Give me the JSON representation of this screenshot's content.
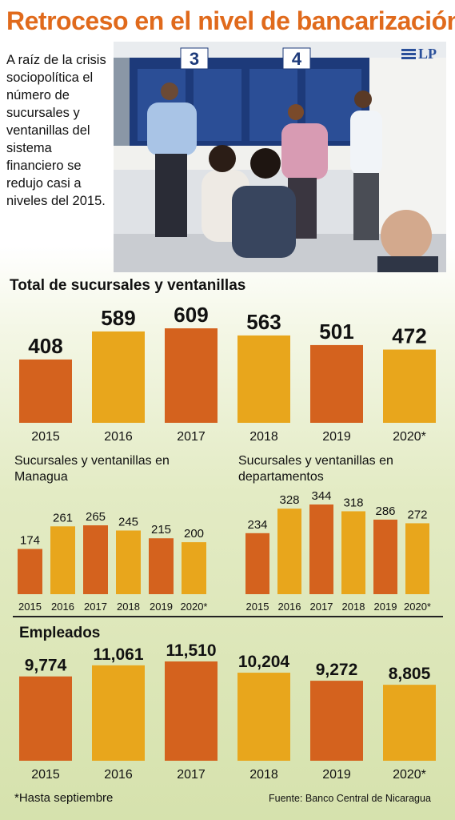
{
  "header": {
    "title": "Retroceso en el nivel de bancarización",
    "intro": "A raíz de la crisis sociopolítica el número de sucursales y ventanillas del sistema financiero se redujo casi a niveles del 2015."
  },
  "photo": {
    "window_numbers": [
      "3",
      "4"
    ],
    "logo_text": "LP"
  },
  "colors": {
    "title": "#e06a1c",
    "bar_orange": "#d4621e",
    "bar_yellow": "#e8a61c"
  },
  "chart_data": [
    {
      "type": "bar",
      "title": "Total de sucursales y ventanillas",
      "categories": [
        "2015",
        "2016",
        "2017",
        "2018",
        "2019",
        "2020*"
      ],
      "values": [
        408,
        589,
        609,
        563,
        501,
        472
      ],
      "value_labels": [
        "408",
        "589",
        "609",
        "563",
        "501",
        "472"
      ]
    },
    {
      "type": "bar",
      "title": "Sucursales y ventanillas en Managua",
      "categories": [
        "2015",
        "2016",
        "2017",
        "2018",
        "2019",
        "2020*"
      ],
      "values": [
        174,
        261,
        265,
        245,
        215,
        200
      ],
      "value_labels": [
        "174",
        "261",
        "265",
        "245",
        "215",
        "200"
      ]
    },
    {
      "type": "bar",
      "title": "Sucursales y ventanillas en departamentos",
      "categories": [
        "2015",
        "2016",
        "2017",
        "2018",
        "2019",
        "2020*"
      ],
      "values": [
        234,
        328,
        344,
        318,
        286,
        272
      ],
      "value_labels": [
        "234",
        "328",
        "344",
        "318",
        "286",
        "272"
      ]
    },
    {
      "type": "bar",
      "title": "Empleados",
      "categories": [
        "2015",
        "2016",
        "2017",
        "2018",
        "2019",
        "2020*"
      ],
      "values": [
        9774,
        11061,
        11510,
        10204,
        9272,
        8805
      ],
      "value_labels": [
        "9,774",
        "11,061",
        "11,510",
        "10,204",
        "9,272",
        "8,805"
      ]
    }
  ],
  "footer": {
    "note": "*Hasta septiembre",
    "source": "Fuente: Banco Central de Nicaragua"
  }
}
